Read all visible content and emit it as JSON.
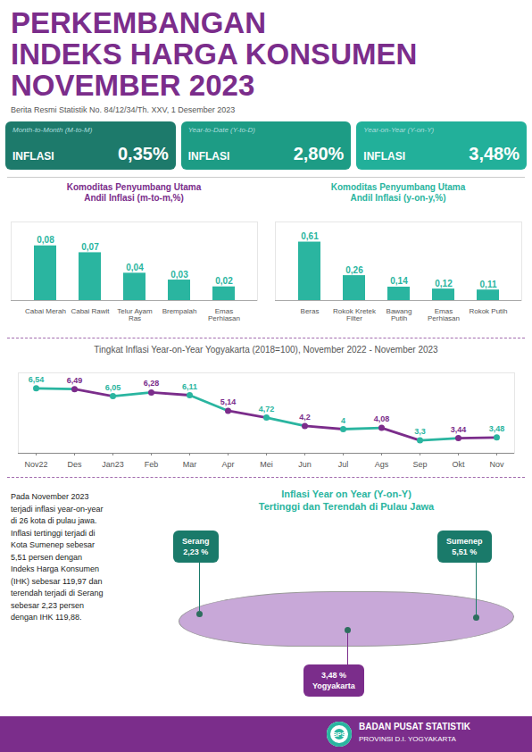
{
  "title": "PERKEMBANGAN\nINDEKS HARGA KONSUMEN\nNOVEMBER 2023",
  "subtitle": "Berita Resmi Statistik No. 84/12/34/Th. XXV, 1 Desember 2023",
  "annotations": [
    "Month-to-Month (M-to-M)",
    "INFLASI",
    "0,35%",
    "Year-to-Date (Y-to-D)",
    "INFLASI",
    "2,80%",
    "Year-on-Year (Y-on-Y)",
    "INFLASI",
    "3,48%",
    "Inflasi Year on Year (Y-on-Y)\nTertinggi dan Terendah di Pulau Jawa",
    "Pada November 2023\nterjadi inflasi year-on-year\ndi 26 kota di pulau jawa.\nInflasi tertinggi terjadi di\nKota Sumenep sebesar\n5,51 persen dengan\nIndeks Harga Konsumen\n(IHK) sebesar 119,97 dan\nterendah terjadi di Serang\nsebesar 2,23 persen\ndengan IHK 119,88.",
    "Serang\n2,23 %",
    "3,48 %\nYogyakarta",
    "Sumenep\n5,51 %",
    "BPS",
    "BADAN PUSAT STATISTIK",
    "PROVINSI D.I. YOGYAKARTA"
  ],
  "chart_data": [
    {
      "type": "bar",
      "title": "Komoditas Penyumbang Utama\nAndil Inflasi (m-to-m,%)",
      "categories": [
        "Cabai Merah",
        "Cabai Rawit",
        "Telur Ayam Ras",
        "Brempalah",
        "Emas Perhiasan"
      ],
      "values": [
        0.08,
        0.07,
        0.04,
        0.03,
        0.02
      ],
      "value_labels": [
        "0,08",
        "0,07",
        "0,04",
        "0,03",
        "0,02"
      ],
      "color": "#2ab5a0",
      "ylim": [
        0,
        0.115
      ],
      "data_labels": true,
      "tick_labels": "x",
      "grid": false
    },
    {
      "type": "bar",
      "title": "Komoditas Penyumbang Utama\nAndil Inflasi (y-on-y,%)",
      "categories": [
        "Beras",
        "Rokok Kretek Filter",
        "Bawang Putih",
        "Emas Perhiasan",
        "Rokok Putih"
      ],
      "values": [
        0.61,
        0.26,
        0.14,
        0.12,
        0.11
      ],
      "value_labels": [
        "0,61",
        "0,26",
        "0,14",
        "0,12",
        "0,11"
      ],
      "color": "#2ab5a0",
      "ylim": [
        0,
        0.82
      ],
      "data_labels": true,
      "tick_labels": "x",
      "grid": false
    },
    {
      "type": "line",
      "title": "Tingkat Inflasi Year-on-Year Yogyakarta (2018=100), November 2022 - November 2023",
      "categories": [
        "Nov22",
        "Des",
        "Jan23",
        "Feb",
        "Mar",
        "Apr",
        "Mei",
        "Jun",
        "Jul",
        "Ags",
        "Sep",
        "Okt",
        "Nov"
      ],
      "values": [
        6.54,
        6.49,
        6.05,
        6.28,
        6.11,
        5.14,
        4.72,
        4.2,
        4.0,
        4.08,
        3.3,
        3.44,
        3.48
      ],
      "value_labels": [
        "6,54",
        "6,49",
        "6,05",
        "6,28",
        "6,11",
        "5,14",
        "4,72",
        "4,2",
        "4",
        "4,08",
        "3,3",
        "3,44",
        "3,48"
      ],
      "colors": [
        "#2ab5a0",
        "#7B2D8B",
        "#2ab5a0",
        "#7B2D8B",
        "#2ab5a0",
        "#7B2D8B",
        "#2ab5a0",
        "#7B2D8B",
        "#2ab5a0",
        "#7B2D8B",
        "#2ab5a0",
        "#7B2D8B",
        "#2ab5a0"
      ],
      "marker": "circle",
      "ylim": [
        2.5,
        7.5
      ],
      "data_labels": true,
      "tick_labels": "x",
      "grid": false
    }
  ]
}
